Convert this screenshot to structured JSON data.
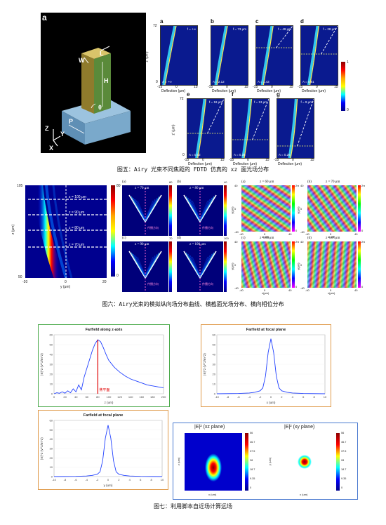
{
  "fig5": {
    "label_main": "a",
    "geom_labels": {
      "L": "L",
      "W": "W",
      "H": "H",
      "theta": "θ",
      "P": "P",
      "z": "Z",
      "y": "Y",
      "x": "X"
    },
    "panels": [
      {
        "id": "a",
        "f": "f = +∞",
        "A": "A = +∞"
      },
      {
        "id": "b",
        "f": "f = 73 μm",
        "A": "A = 2.12"
      },
      {
        "id": "c",
        "f": "f = 49 μm",
        "A": "A = 1.43"
      },
      {
        "id": "d",
        "f": "f = 28 μm",
        "A": "A = 0.81"
      },
      {
        "id": "e",
        "f": "f = 18 μm",
        "A": "A = 0.52"
      },
      {
        "id": "f",
        "f": "f = 13 μm",
        "A": "A = 0.38"
      },
      {
        "id": "g",
        "f": "f = 9 μm",
        "A": "A = 0.26"
      }
    ],
    "y_top": "72",
    "y_zero": "0",
    "y_axis": "z' (μm)",
    "x_ticks": [
      "-15",
      "0",
      "15"
    ],
    "x_axis": "Deflection (μm)",
    "cbar_top": "1",
    "cbar_bottom": "0",
    "caption": "图五：Airy 光束不同焦距的 FDTD 仿真的 xz 面光场分布"
  },
  "fig6": {
    "left": {
      "y_top": "105",
      "y_bottom": "50",
      "y_axis": "z (μm)",
      "x_ticks": [
        "-20",
        "0",
        "20"
      ],
      "x_axis": "y (μm)",
      "cbar_top": "80",
      "cbar_bottom": "0",
      "lines": [
        "z = 100 μm",
        "z = 90 μm",
        "z = 80 μm",
        "z = 70 μm"
      ]
    },
    "mid": [
      {
        "id": "(a)",
        "z": "z = 70 μm",
        "prop": "传播方向"
      },
      {
        "id": "(b)",
        "z": "z = 80 μm",
        "prop": "传播方向"
      },
      {
        "id": "(c)",
        "z": "z = 90 μm",
        "prop": "传播方向"
      },
      {
        "id": "(d)",
        "z": "z = 100 μm",
        "prop": "传播方向"
      }
    ],
    "mid_cbar": [
      "80",
      "40",
      "70",
      "100"
    ],
    "right": [
      {
        "id": "(a)",
        "z": "z = 60 μm"
      },
      {
        "id": "(b)",
        "z": "z = 70 μm"
      },
      {
        "id": "(c)",
        "z": "z = 80 μm"
      },
      {
        "id": "(d)",
        "z": "z = 87 μm"
      }
    ],
    "phase_top": "2π",
    "phase_bottom": "0",
    "phase_axis_x": "x(μm)",
    "phase_axis_y": "y(μm)",
    "phase_ticks": [
      "-40",
      "0",
      "40"
    ],
    "caption": "图六：Airy光束的模拟纵向场分布曲线、横截面光场分布、横向相位分布"
  },
  "fig7": {
    "p1": {
      "title": "Farfield along z-axis",
      "xlabel": "z (um)",
      "ylabel": "|E|^2 (V^2/m^2)",
      "annot": "焦平面",
      "yticks": [
        "0",
        "10",
        "20",
        "30",
        "40",
        "50",
        "60"
      ],
      "xticks": [
        "0",
        "20",
        "40",
        "60",
        "80",
        "100",
        "120",
        "140",
        "160",
        "180",
        "200"
      ]
    },
    "p2": {
      "title": "Farfield at focal plane",
      "xlabel": "x (um)",
      "ylabel": "|E|^2 (V^2/m^2)",
      "yticks": [
        "0",
        "10",
        "20",
        "30",
        "40",
        "50",
        "60"
      ],
      "xticks": [
        "-10",
        "-8",
        "-6",
        "-4",
        "-2",
        "0",
        "2",
        "4",
        "6",
        "8",
        "10"
      ]
    },
    "p3": {
      "title": "Farfield at focal plane",
      "xlabel": "y (um)",
      "ylabel": "|E|^2 (V^2/m^2)",
      "yticks": [
        "0",
        "10",
        "20",
        "30",
        "40",
        "50",
        "60"
      ],
      "xticks": [
        "-10",
        "-8",
        "-6",
        "-4",
        "-2",
        "0",
        "2",
        "4",
        "6",
        "8",
        "10"
      ]
    },
    "p4": {
      "title_l": "|E|² (xz plane)",
      "title_r": "|E|² (xy plane)",
      "cbar": [
        "56",
        "46.7",
        "37.5",
        "28",
        "18.7",
        "9.35",
        "0"
      ],
      "xl": "x (um)",
      "yl_l": "z (um)",
      "yl_r": "y (um)"
    },
    "caption": "图七：利用脚本自近场计算远场"
  },
  "chart_data": [
    {
      "type": "line",
      "title": "Farfield along z-axis",
      "xlabel": "z (um)",
      "ylabel": "|E|^2 (V^2/m^2)",
      "xlim": [
        0,
        200
      ],
      "ylim": [
        0,
        60
      ],
      "x": [
        0,
        5,
        10,
        15,
        20,
        25,
        30,
        35,
        40,
        45,
        50,
        55,
        60,
        65,
        70,
        75,
        80,
        85,
        90,
        95,
        100,
        110,
        120,
        130,
        140,
        150,
        160,
        170,
        180,
        190,
        200
      ],
      "y": [
        0,
        1,
        0.5,
        2,
        0.6,
        3,
        1,
        5,
        2,
        9,
        4,
        17,
        26,
        35,
        44,
        51,
        55,
        53,
        47,
        40,
        34,
        27,
        22,
        18,
        15,
        13,
        11,
        9,
        8,
        7,
        6
      ]
    },
    {
      "type": "line",
      "title": "Farfield at focal plane",
      "xlabel": "x (um)",
      "ylabel": "|E|^2 (V^2/m^2)",
      "xlim": [
        -10,
        10
      ],
      "ylim": [
        0,
        60
      ],
      "x": [
        -10,
        -6,
        -4,
        -3,
        -2,
        -1.5,
        -1,
        -0.5,
        0,
        0.5,
        1,
        1.5,
        2,
        3,
        4,
        6,
        10
      ],
      "y": [
        0,
        0.3,
        0.8,
        1.5,
        3,
        6,
        18,
        42,
        56,
        42,
        18,
        6,
        3,
        1.5,
        0.8,
        0.3,
        0
      ]
    },
    {
      "type": "line",
      "title": "Farfield at focal plane",
      "xlabel": "y (um)",
      "ylabel": "|E|^2 (V^2/m^2)",
      "xlim": [
        -10,
        10
      ],
      "ylim": [
        0,
        60
      ],
      "x": [
        -10,
        -6,
        -4,
        -3,
        -2,
        -1.5,
        -1,
        -0.5,
        0,
        0.5,
        1,
        1.5,
        2,
        3,
        4,
        6,
        10
      ],
      "y": [
        0,
        0.2,
        0.6,
        1.2,
        2.5,
        5,
        17,
        41,
        55,
        41,
        17,
        5,
        2.5,
        1.2,
        0.6,
        0.2,
        0
      ]
    }
  ]
}
